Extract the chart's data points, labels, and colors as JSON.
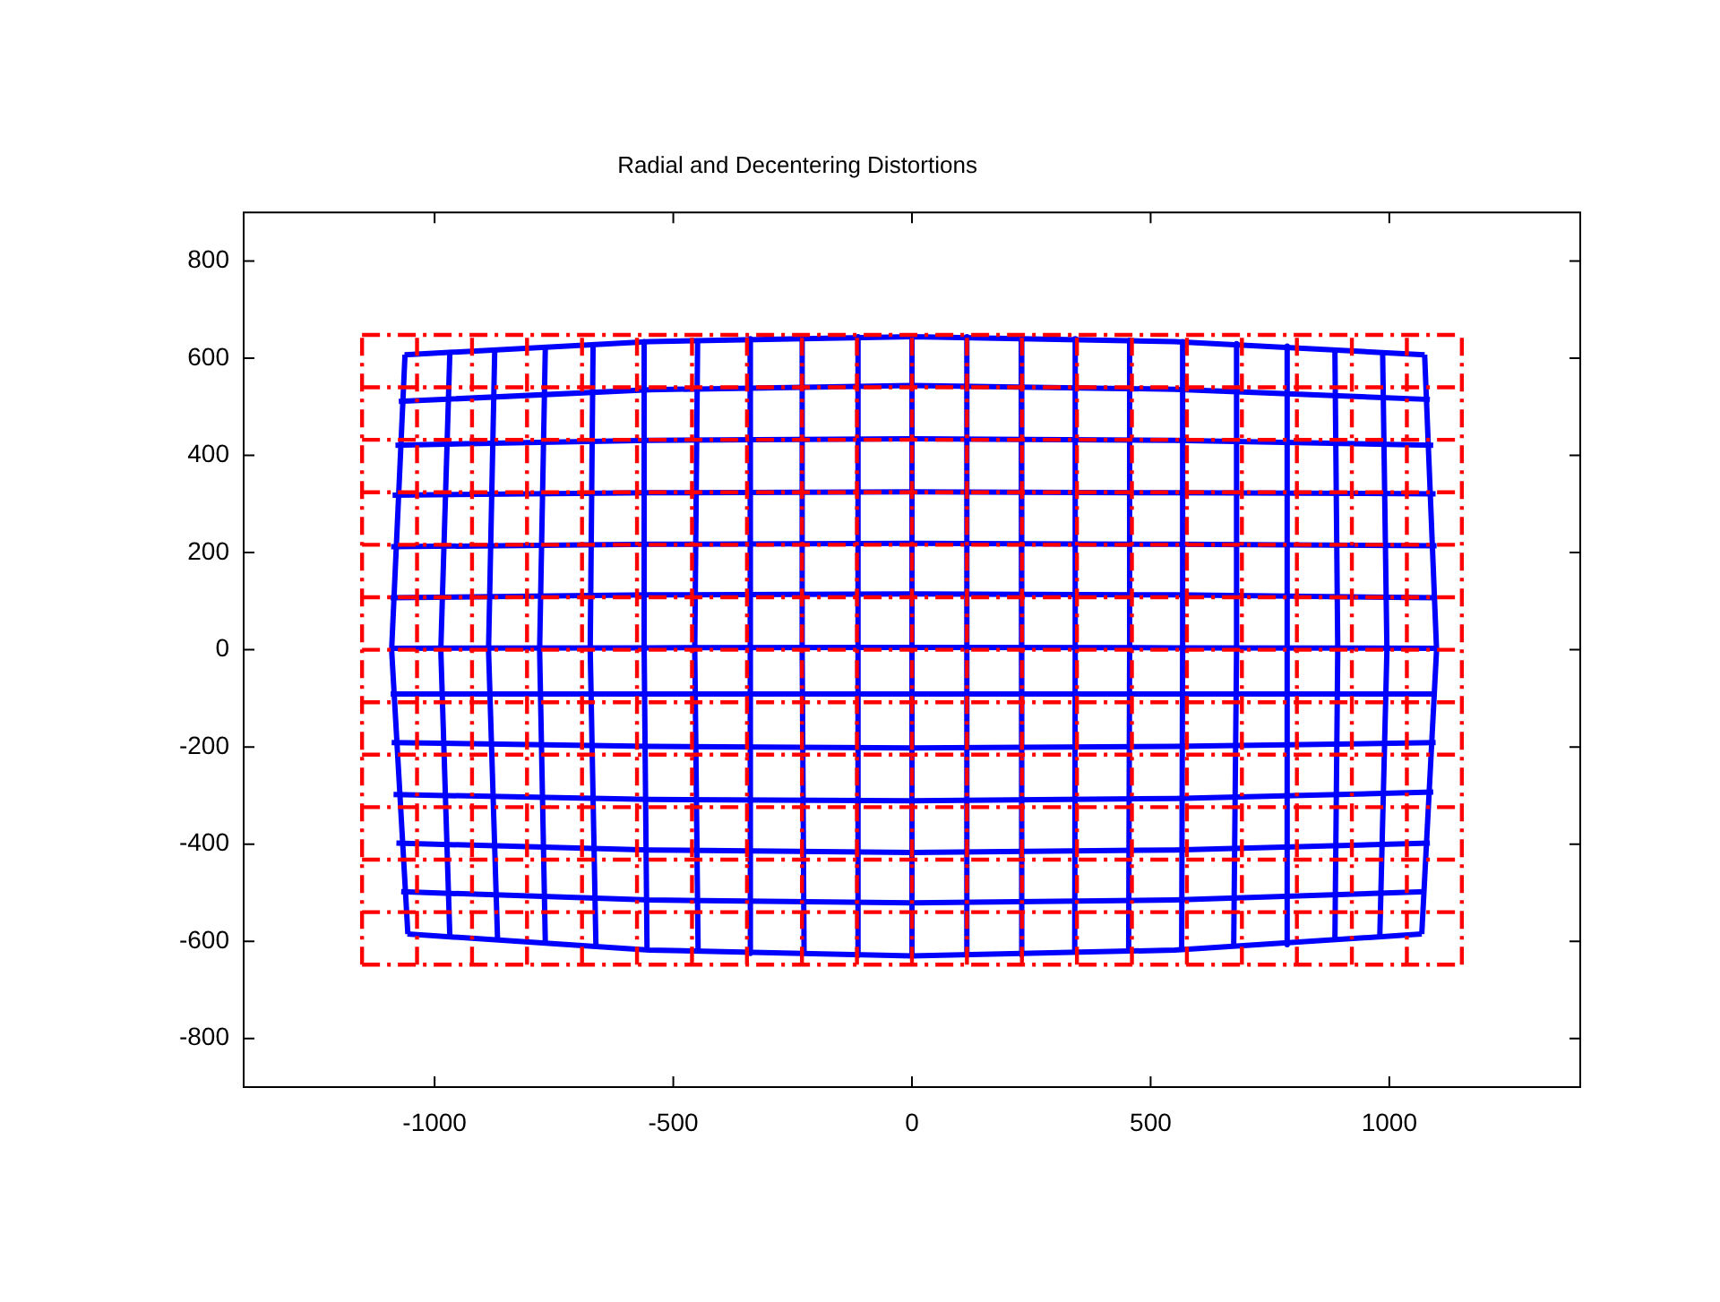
{
  "chart_data": {
    "type": "line",
    "title": "Radial and Decentering Distortions",
    "xlim": [
      -1400,
      1400
    ],
    "ylim": [
      -900,
      900
    ],
    "xticks": [
      -1000,
      -500,
      0,
      500,
      1000
    ],
    "yticks": [
      -800,
      -600,
      -400,
      -200,
      0,
      200,
      400,
      600,
      800
    ],
    "series": [
      {
        "type": "line",
        "color": "#0000ff",
        "line_style": "solid",
        "x": [
          -1062,
          -1090,
          -1056
        ],
        "values": [
          607,
          0,
          -585
        ]
      },
      {
        "type": "line",
        "color": "#0000ff",
        "line_style": "solid",
        "x": [
          -968,
          -987,
          -968
        ],
        "values": [
          614,
          0,
          -593
        ]
      },
      {
        "type": "line",
        "color": "#0000ff",
        "line_style": "solid",
        "x": [
          -874,
          -887,
          -868
        ],
        "values": [
          619,
          0,
          -600
        ]
      },
      {
        "type": "line",
        "color": "#0000ff",
        "line_style": "solid",
        "x": [
          -768,
          -780,
          -768
        ],
        "values": [
          625,
          0,
          -607
        ]
      },
      {
        "type": "line",
        "color": "#0000ff",
        "line_style": "solid",
        "x": [
          -668,
          -674,
          -662
        ],
        "values": [
          630,
          0,
          -612
        ]
      },
      {
        "type": "line",
        "color": "#0000ff",
        "line_style": "solid",
        "x": [
          -561,
          -561,
          -555
        ],
        "values": [
          634,
          0,
          -618
        ]
      },
      {
        "type": "line",
        "color": "#0000ff",
        "line_style": "solid",
        "x": [
          -449,
          -455,
          -448
        ],
        "values": [
          637,
          0,
          -622
        ]
      },
      {
        "type": "line",
        "color": "#0000ff",
        "line_style": "solid",
        "x": [
          -339,
          -339,
          -338
        ],
        "values": [
          640,
          0,
          -625
        ]
      },
      {
        "type": "line",
        "color": "#0000ff",
        "line_style": "solid",
        "x": [
          -230,
          -230,
          -226
        ],
        "values": [
          642,
          0,
          -628
        ]
      },
      {
        "type": "line",
        "color": "#0000ff",
        "line_style": "solid",
        "x": [
          -113,
          -113,
          -113
        ],
        "values": [
          644,
          0,
          -629
        ]
      },
      {
        "type": "line",
        "color": "#0000ff",
        "line_style": "solid",
        "x": [
          0,
          0,
          0
        ],
        "values": [
          644,
          0,
          -630
        ]
      },
      {
        "type": "line",
        "color": "#0000ff",
        "line_style": "solid",
        "x": [
          115,
          115,
          115
        ],
        "values": [
          644,
          0,
          -629
        ]
      },
      {
        "type": "line",
        "color": "#0000ff",
        "line_style": "solid",
        "x": [
          229,
          229,
          231
        ],
        "values": [
          642,
          0,
          -628
        ]
      },
      {
        "type": "line",
        "color": "#0000ff",
        "line_style": "solid",
        "x": [
          342,
          342,
          341
        ],
        "values": [
          640,
          0,
          -625
        ]
      },
      {
        "type": "line",
        "color": "#0000ff",
        "line_style": "solid",
        "x": [
          456,
          456,
          454
        ],
        "values": [
          637,
          0,
          -622
        ]
      },
      {
        "type": "line",
        "color": "#0000ff",
        "line_style": "solid",
        "x": [
          567,
          567,
          565
        ],
        "values": [
          634,
          0,
          -618
        ]
      },
      {
        "type": "line",
        "color": "#0000ff",
        "line_style": "solid",
        "x": [
          680,
          680,
          674
        ],
        "values": [
          630,
          0,
          -612
        ]
      },
      {
        "type": "line",
        "color": "#0000ff",
        "line_style": "solid",
        "x": [
          786,
          786,
          786
        ],
        "values": [
          625,
          0,
          -607
        ]
      },
      {
        "type": "line",
        "color": "#0000ff",
        "line_style": "solid",
        "x": [
          886,
          892,
          886
        ],
        "values": [
          619,
          0,
          -600
        ]
      },
      {
        "type": "line",
        "color": "#0000ff",
        "line_style": "solid",
        "x": [
          986,
          995,
          980
        ],
        "values": [
          614,
          0,
          -593
        ]
      },
      {
        "type": "line",
        "color": "#0000ff",
        "line_style": "solid",
        "x": [
          1074,
          1099,
          1068
        ],
        "values": [
          607,
          0,
          -585
        ]
      },
      {
        "type": "line",
        "color": "#0000ff",
        "line_style": "solid",
        "x": [
          -1063,
          -550,
          0,
          550,
          1074
        ],
        "values": [
          607,
          634,
          644,
          634,
          607
        ]
      },
      {
        "type": "line",
        "color": "#0000ff",
        "line_style": "solid",
        "x": [
          -1075,
          -550,
          0,
          550,
          1085
        ],
        "values": [
          511,
          535,
          544,
          536,
          515
        ]
      },
      {
        "type": "line",
        "color": "#0000ff",
        "line_style": "solid",
        "x": [
          -1082,
          -550,
          0,
          550,
          1092
        ],
        "values": [
          421,
          431,
          434,
          431,
          421
        ]
      },
      {
        "type": "line",
        "color": "#0000ff",
        "line_style": "solid",
        "x": [
          -1088,
          -550,
          0,
          550,
          1097
        ],
        "values": [
          318,
          323,
          325,
          323,
          321
        ]
      },
      {
        "type": "line",
        "color": "#0000ff",
        "line_style": "solid",
        "x": [
          -1091,
          -550,
          0,
          550,
          1099
        ],
        "values": [
          212,
          217,
          219,
          217,
          214
        ]
      },
      {
        "type": "line",
        "color": "#0000ff",
        "line_style": "solid",
        "x": [
          -1092,
          -550,
          0,
          550,
          1100
        ],
        "values": [
          107,
          113,
          115,
          113,
          107
        ]
      },
      {
        "type": "line",
        "color": "#0000ff",
        "line_style": "solid",
        "x": [
          -1092,
          -550,
          0,
          550,
          1100
        ],
        "values": [
          3,
          4,
          5,
          4,
          3
        ]
      },
      {
        "type": "line",
        "color": "#0000ff",
        "line_style": "solid",
        "x": [
          -1092,
          -550,
          0,
          550,
          1099
        ],
        "values": [
          -91,
          -91,
          -91,
          -91,
          -91
        ]
      },
      {
        "type": "line",
        "color": "#0000ff",
        "line_style": "solid",
        "x": [
          -1090,
          -550,
          0,
          550,
          1097
        ],
        "values": [
          -191,
          -199,
          -202,
          -199,
          -191
        ]
      },
      {
        "type": "line",
        "color": "#0000ff",
        "line_style": "solid",
        "x": [
          -1086,
          -550,
          0,
          550,
          1092
        ],
        "values": [
          -298,
          -308,
          -311,
          -306,
          -293
        ]
      },
      {
        "type": "line",
        "color": "#0000ff",
        "line_style": "solid",
        "x": [
          -1080,
          -550,
          0,
          550,
          1085
        ],
        "values": [
          -398,
          -412,
          -417,
          -412,
          -398
        ]
      },
      {
        "type": "line",
        "color": "#0000ff",
        "line_style": "solid",
        "x": [
          -1070,
          -550,
          0,
          550,
          1077
        ],
        "values": [
          -498,
          -515,
          -521,
          -515,
          -498
        ]
      },
      {
        "type": "line",
        "color": "#0000ff",
        "line_style": "solid",
        "x": [
          -1057,
          -550,
          0,
          550,
          1068
        ],
        "values": [
          -585,
          -618,
          -630,
          -618,
          -585
        ]
      },
      {
        "type": "line",
        "color": "#ff0000",
        "line_style": "dashed",
        "x": [
          -1152,
          -1152
        ],
        "values": [
          -648,
          648
        ]
      },
      {
        "type": "line",
        "color": "#ff0000",
        "line_style": "dashed",
        "x": [
          -1036.8,
          -1036.8
        ],
        "values": [
          -648,
          648
        ]
      },
      {
        "type": "line",
        "color": "#ff0000",
        "line_style": "dashed",
        "x": [
          -921.6,
          -921.6
        ],
        "values": [
          -648,
          648
        ]
      },
      {
        "type": "line",
        "color": "#ff0000",
        "line_style": "dashed",
        "x": [
          -806.4,
          -806.4
        ],
        "values": [
          -648,
          648
        ]
      },
      {
        "type": "line",
        "color": "#ff0000",
        "line_style": "dashed",
        "x": [
          -691.2,
          -691.2
        ],
        "values": [
          -648,
          648
        ]
      },
      {
        "type": "line",
        "color": "#ff0000",
        "line_style": "dashed",
        "x": [
          -576,
          -576
        ],
        "values": [
          -648,
          648
        ]
      },
      {
        "type": "line",
        "color": "#ff0000",
        "line_style": "dashed",
        "x": [
          -460.8,
          -460.8
        ],
        "values": [
          -648,
          648
        ]
      },
      {
        "type": "line",
        "color": "#ff0000",
        "line_style": "dashed",
        "x": [
          -345.6,
          -345.6
        ],
        "values": [
          -648,
          648
        ]
      },
      {
        "type": "line",
        "color": "#ff0000",
        "line_style": "dashed",
        "x": [
          -230.4,
          -230.4
        ],
        "values": [
          -648,
          648
        ]
      },
      {
        "type": "line",
        "color": "#ff0000",
        "line_style": "dashed",
        "x": [
          -115.2,
          -115.2
        ],
        "values": [
          -648,
          648
        ]
      },
      {
        "type": "line",
        "color": "#ff0000",
        "line_style": "dashed",
        "x": [
          0,
          0
        ],
        "values": [
          -648,
          648
        ]
      },
      {
        "type": "line",
        "color": "#ff0000",
        "line_style": "dashed",
        "x": [
          115.2,
          115.2
        ],
        "values": [
          -648,
          648
        ]
      },
      {
        "type": "line",
        "color": "#ff0000",
        "line_style": "dashed",
        "x": [
          230.4,
          230.4
        ],
        "values": [
          -648,
          648
        ]
      },
      {
        "type": "line",
        "color": "#ff0000",
        "line_style": "dashed",
        "x": [
          345.6,
          345.6
        ],
        "values": [
          -648,
          648
        ]
      },
      {
        "type": "line",
        "color": "#ff0000",
        "line_style": "dashed",
        "x": [
          460.8,
          460.8
        ],
        "values": [
          -648,
          648
        ]
      },
      {
        "type": "line",
        "color": "#ff0000",
        "line_style": "dashed",
        "x": [
          576,
          576
        ],
        "values": [
          -648,
          648
        ]
      },
      {
        "type": "line",
        "color": "#ff0000",
        "line_style": "dashed",
        "x": [
          691.2,
          691.2
        ],
        "values": [
          -648,
          648
        ]
      },
      {
        "type": "line",
        "color": "#ff0000",
        "line_style": "dashed",
        "x": [
          806.4,
          806.4
        ],
        "values": [
          -648,
          648
        ]
      },
      {
        "type": "line",
        "color": "#ff0000",
        "line_style": "dashed",
        "x": [
          921.6,
          921.6
        ],
        "values": [
          -648,
          648
        ]
      },
      {
        "type": "line",
        "color": "#ff0000",
        "line_style": "dashed",
        "x": [
          1036.8,
          1036.8
        ],
        "values": [
          -648,
          648
        ]
      },
      {
        "type": "line",
        "color": "#ff0000",
        "line_style": "dashed",
        "x": [
          1152,
          1152
        ],
        "values": [
          -648,
          648
        ]
      },
      {
        "type": "line",
        "color": "#ff0000",
        "line_style": "dashed",
        "x": [
          -1152,
          1152
        ],
        "values": [
          648,
          648
        ]
      },
      {
        "type": "line",
        "color": "#ff0000",
        "line_style": "dashed",
        "x": [
          -1152,
          1152
        ],
        "values": [
          540,
          540
        ]
      },
      {
        "type": "line",
        "color": "#ff0000",
        "line_style": "dashed",
        "x": [
          -1152,
          1152
        ],
        "values": [
          432,
          432
        ]
      },
      {
        "type": "line",
        "color": "#ff0000",
        "line_style": "dashed",
        "x": [
          -1152,
          1152
        ],
        "values": [
          324,
          324
        ]
      },
      {
        "type": "line",
        "color": "#ff0000",
        "line_style": "dashed",
        "x": [
          -1152,
          1152
        ],
        "values": [
          216,
          216
        ]
      },
      {
        "type": "line",
        "color": "#ff0000",
        "line_style": "dashed",
        "x": [
          -1152,
          1152
        ],
        "values": [
          108,
          108
        ]
      },
      {
        "type": "line",
        "color": "#ff0000",
        "line_style": "dashed",
        "x": [
          -1152,
          1152
        ],
        "values": [
          0,
          0
        ]
      },
      {
        "type": "line",
        "color": "#ff0000",
        "line_style": "dashed",
        "x": [
          -1152,
          1152
        ],
        "values": [
          -108,
          -108
        ]
      },
      {
        "type": "line",
        "color": "#ff0000",
        "line_style": "dashed",
        "x": [
          -1152,
          1152
        ],
        "values": [
          -216,
          -216
        ]
      },
      {
        "type": "line",
        "color": "#ff0000",
        "line_style": "dashed",
        "x": [
          -1152,
          1152
        ],
        "values": [
          -324,
          -324
        ]
      },
      {
        "type": "line",
        "color": "#ff0000",
        "line_style": "dashed",
        "x": [
          -1152,
          1152
        ],
        "values": [
          -432,
          -432
        ]
      },
      {
        "type": "line",
        "color": "#ff0000",
        "line_style": "dashed",
        "x": [
          -1152,
          1152
        ],
        "values": [
          -540,
          -540
        ]
      },
      {
        "type": "line",
        "color": "#ff0000",
        "line_style": "dashed",
        "x": [
          -1152,
          1152
        ],
        "values": [
          -648,
          -648
        ]
      }
    ]
  }
}
